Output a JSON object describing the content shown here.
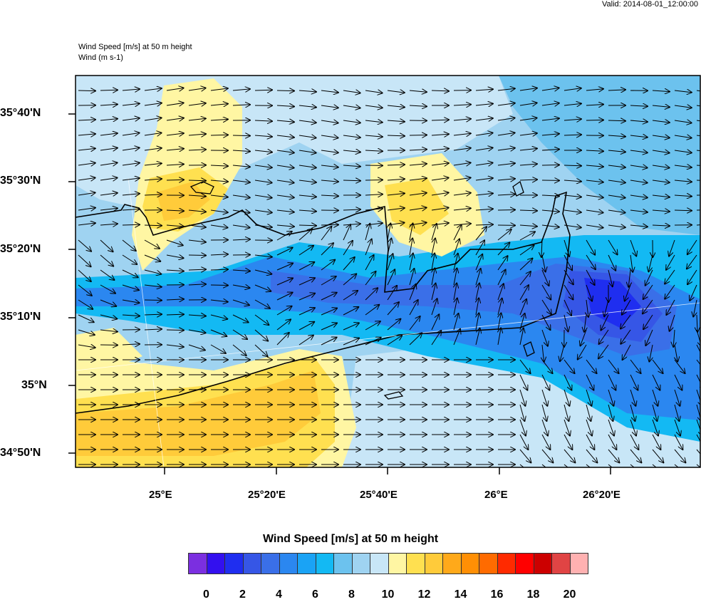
{
  "valid_text": "Valid: 2014-08-01_12:00:00",
  "title_line1": "Wind Speed [m/s] at 50 m height",
  "title_line2": "Wind   (m s-1)",
  "lat_labels": [
    "35°40'N",
    "35°30'N",
    "35°20'N",
    "35°10'N",
    "35°N",
    "34°50'N"
  ],
  "lon_labels": [
    "25°E",
    "25°20'E",
    "25°40'E",
    "26°E",
    "26°20'E"
  ],
  "colorbar": {
    "title": "Wind Speed [m/s] at 50 m height",
    "colors": [
      "#7b2fe0",
      "#3310ef",
      "#1f2ef0",
      "#3656e6",
      "#3a6fe8",
      "#2b87f0",
      "#1aa3f5",
      "#13b9f3",
      "#6cc2ee",
      "#9fd3f1",
      "#c8e6f7",
      "#fff6a3",
      "#ffe050",
      "#ffcb3a",
      "#ffa91a",
      "#ff8f05",
      "#ff6b00",
      "#ff2a00",
      "#ff0000",
      "#cc0000",
      "#e04444",
      "#ffb1b1"
    ],
    "tick_labels": [
      "0",
      "2",
      "4",
      "6",
      "8",
      "10",
      "12",
      "14",
      "16",
      "18",
      "20"
    ]
  }
}
